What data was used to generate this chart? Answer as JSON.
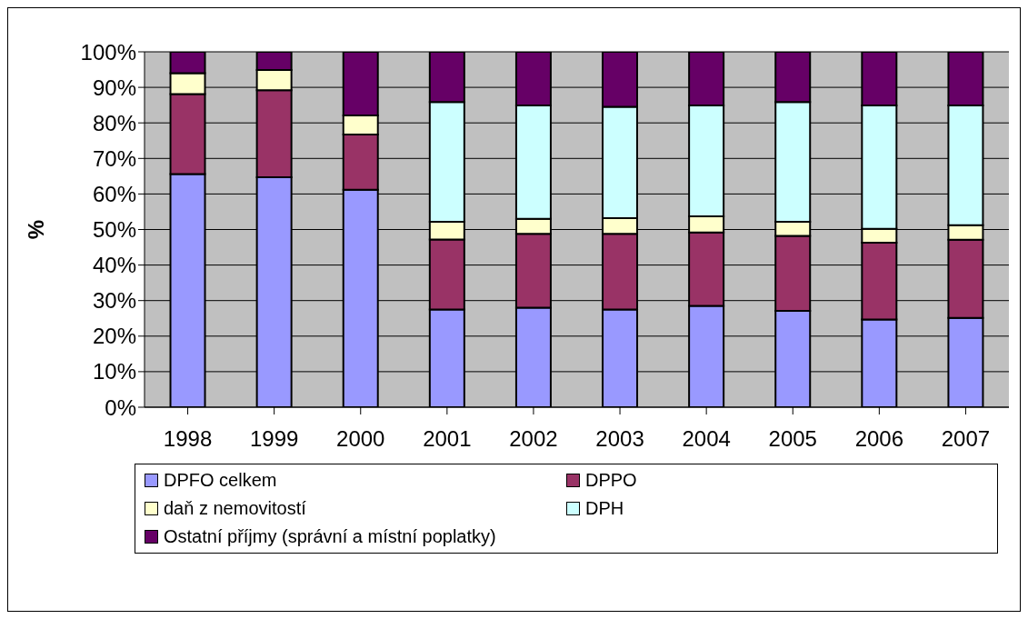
{
  "chart_data": {
    "type": "bar",
    "stacked": true,
    "ylabel": "%",
    "categories": [
      "1998",
      "1999",
      "2000",
      "2001",
      "2002",
      "2003",
      "2004",
      "2005",
      "2006",
      "2007"
    ],
    "series": [
      {
        "name": "DPFO celkem",
        "color": "#9999ff",
        "values": [
          65.6,
          64.7,
          61.2,
          27.5,
          28.0,
          27.5,
          28.5,
          27.1,
          24.7,
          25.1
        ]
      },
      {
        "name": "DPPO",
        "color": "#993366",
        "values": [
          22.5,
          24.5,
          15.5,
          19.7,
          20.8,
          21.3,
          20.7,
          21.1,
          21.6,
          22.0
        ]
      },
      {
        "name": "daň z nemovitostí",
        "color": "#ffffcc",
        "values": [
          5.9,
          5.7,
          5.4,
          5.0,
          4.2,
          4.4,
          4.5,
          4.0,
          3.9,
          4.1
        ]
      },
      {
        "name": "DPH",
        "color": "#ccffff",
        "values": [
          null,
          null,
          null,
          33.7,
          31.9,
          31.3,
          31.2,
          33.7,
          34.7,
          33.7
        ]
      },
      {
        "name": "Ostatní příjmy (správní a místní poplatky)",
        "color": "#660066",
        "values": [
          6.0,
          5.1,
          17.9,
          14.1,
          15.1,
          15.5,
          15.1,
          14.1,
          15.1,
          15.1
        ]
      }
    ],
    "ylim": [
      0,
      100
    ],
    "yticks": [
      {
        "value": 0,
        "label": "0%"
      },
      {
        "value": 10,
        "label": "10%"
      },
      {
        "value": 20,
        "label": "20%"
      },
      {
        "value": 30,
        "label": "30%"
      },
      {
        "value": 40,
        "label": "40%"
      },
      {
        "value": 50,
        "label": "50%"
      },
      {
        "value": 60,
        "label": "60%"
      },
      {
        "value": 70,
        "label": "70%"
      },
      {
        "value": 80,
        "label": "80%"
      },
      {
        "value": 90,
        "label": "90%"
      },
      {
        "value": 100,
        "label": "100%"
      }
    ],
    "grid": "y",
    "legend": "bottom"
  }
}
